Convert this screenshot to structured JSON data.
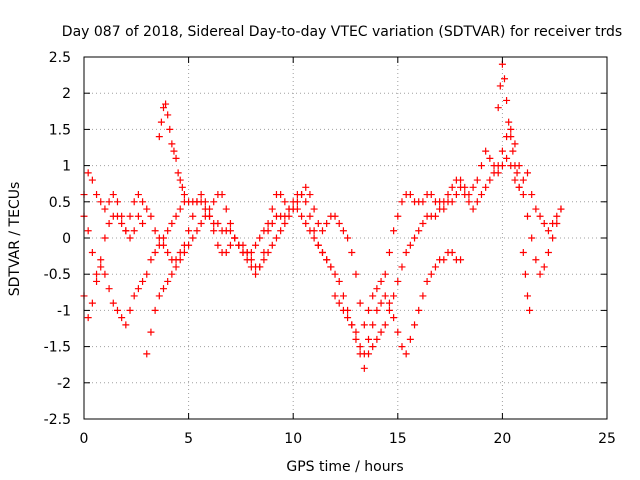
{
  "chart_data": {
    "type": "scatter",
    "title": "Day 087 of 2018, Sidereal Day-to-day VTEC variation (SDTVAR) for receiver trds",
    "xlabel": "GPS time / hours",
    "ylabel": "SDTVAR / TECUs",
    "xlim": [
      0,
      25
    ],
    "ylim": [
      -2.5,
      2.5
    ],
    "xticks": [
      "0",
      "5",
      "10",
      "15",
      "20",
      "25"
    ],
    "yticks": [
      "-2.5",
      "-2",
      "-1.5",
      "-1",
      "-0.5",
      "0",
      "0.5",
      "1",
      "1.5",
      "2",
      "2.5"
    ],
    "grid": true,
    "marker": "+",
    "color": "#ff0000",
    "series": [
      {
        "x": [
          0.0,
          0.2,
          0.4,
          0.6,
          0.8,
          1.0,
          1.2,
          1.4,
          1.6,
          1.8,
          2.0,
          2.2,
          2.4,
          2.6,
          2.8,
          3.0,
          3.2,
          3.4,
          3.6,
          3.8,
          4.0,
          4.2,
          4.4,
          4.6,
          4.8,
          5.0,
          5.2,
          5.4,
          5.6,
          5.8,
          6.0,
          6.2,
          6.4,
          6.6,
          6.8,
          7.0,
          7.2,
          7.4,
          7.6,
          7.8,
          8.0,
          8.2,
          8.4,
          8.6,
          8.8,
          9.0,
          9.2,
          9.4,
          9.6,
          9.8,
          10.0,
          10.2,
          10.4,
          10.6,
          10.8,
          11.0,
          11.2,
          11.4,
          11.6,
          11.8,
          12.0,
          12.2,
          12.4,
          12.6,
          12.8,
          13.0,
          13.2,
          13.4,
          13.6,
          13.8,
          14.0,
          14.2,
          14.4,
          14.6,
          14.8,
          15.0,
          15.2,
          15.4,
          15.6,
          15.8,
          16.0,
          16.2,
          16.4,
          16.6,
          16.8,
          17.0,
          17.2,
          17.4,
          17.6,
          17.8,
          18.0,
          18.2,
          18.4,
          18.6,
          18.8,
          19.0,
          19.2,
          19.4,
          19.6,
          19.8,
          20.0,
          20.2,
          20.4,
          20.6,
          20.8,
          21.0,
          21.2,
          21.4,
          21.6,
          21.8,
          22.0,
          22.2,
          22.4,
          22.6,
          22.8
        ],
        "y": [
          0.6,
          0.9,
          0.8,
          0.6,
          0.5,
          0.4,
          0.5,
          0.6,
          0.5,
          0.3,
          0.1,
          0.3,
          0.5,
          0.6,
          0.5,
          0.4,
          0.3,
          0.1,
          0.0,
          -0.1,
          -0.2,
          -0.3,
          -0.3,
          -0.2,
          -0.1,
          0.1,
          0.3,
          0.5,
          0.6,
          0.5,
          0.3,
          0.1,
          -0.1,
          -0.2,
          -0.2,
          -0.1,
          0.0,
          -0.1,
          -0.2,
          -0.3,
          -0.4,
          -0.5,
          -0.4,
          -0.2,
          0.1,
          0.4,
          0.6,
          0.6,
          0.5,
          0.4,
          0.4,
          0.5,
          0.6,
          0.7,
          0.6,
          0.4,
          0.2,
          0.1,
          0.2,
          0.3,
          0.3,
          0.2,
          0.1,
          0.0,
          -0.2,
          -0.5,
          -0.9,
          -1.2,
          -1.0,
          -0.8,
          -0.7,
          -0.6,
          -0.5,
          -0.2,
          0.1,
          0.3,
          0.5,
          0.6,
          0.6,
          0.5,
          0.5,
          0.5,
          0.6,
          0.6,
          0.5,
          0.5,
          0.5,
          0.6,
          0.7,
          0.8,
          0.8,
          0.7,
          0.6,
          0.7,
          0.8,
          1.0,
          1.2,
          1.1,
          1.0,
          0.9,
          1.0,
          1.1,
          1.0,
          0.8,
          0.7,
          0.8,
          0.9,
          0.6,
          0.4,
          0.3,
          0.2,
          0.1,
          0.2,
          0.3,
          0.4
        ]
      },
      {
        "x": [
          0.0,
          0.2,
          0.4,
          0.6,
          0.8,
          1.0,
          1.2,
          1.4,
          1.6,
          1.8,
          2.0,
          2.2,
          2.4,
          2.6,
          2.8,
          3.0,
          3.2,
          3.4,
          3.6,
          3.8,
          4.0,
          4.2,
          4.4,
          4.6,
          4.8,
          5.0,
          5.2,
          5.4,
          5.6,
          5.8,
          6.0,
          6.2,
          6.4,
          6.6,
          6.8,
          7.0,
          7.2,
          7.4,
          7.6,
          7.8,
          8.0,
          8.2,
          8.4,
          8.6,
          8.8,
          9.0,
          9.2,
          9.4,
          9.6,
          9.8,
          10.0,
          10.2,
          10.4,
          10.6,
          10.8,
          11.0,
          11.2,
          11.4,
          11.6,
          11.8,
          12.0,
          12.2,
          12.4,
          12.6,
          12.8,
          13.0,
          13.2,
          13.4,
          13.6,
          13.8,
          14.0,
          14.2,
          14.4,
          14.6,
          14.8,
          15.0,
          15.2,
          15.4,
          15.6,
          15.8,
          16.0,
          16.2,
          16.4,
          16.6,
          16.8,
          17.0,
          17.2,
          17.4,
          17.6,
          17.8,
          18.0,
          18.2,
          18.4,
          18.6,
          18.8,
          19.0,
          19.2,
          19.4,
          19.6,
          19.8,
          20.0,
          20.2,
          20.4,
          20.6,
          20.8,
          21.0,
          21.2,
          21.4,
          21.6,
          21.8,
          22.0,
          22.2,
          22.4,
          22.6,
          22.8
        ],
        "y": [
          -0.8,
          -1.1,
          -0.9,
          -0.6,
          -0.4,
          -0.5,
          -0.7,
          -0.9,
          -1.0,
          -1.1,
          -1.2,
          -1.0,
          -0.8,
          -0.7,
          -0.6,
          -0.5,
          -0.3,
          -0.2,
          -0.1,
          0.0,
          0.1,
          0.2,
          0.3,
          0.4,
          0.5,
          0.5,
          0.5,
          0.5,
          0.5,
          0.4,
          0.3,
          0.2,
          0.2,
          0.1,
          0.1,
          0.1,
          0.0,
          -0.1,
          -0.1,
          -0.2,
          -0.3,
          -0.4,
          -0.4,
          -0.3,
          -0.2,
          -0.1,
          0.0,
          0.1,
          0.2,
          0.3,
          0.4,
          0.4,
          0.3,
          0.2,
          0.1,
          0.0,
          -0.1,
          -0.2,
          -0.3,
          -0.4,
          -0.5,
          -0.6,
          -0.8,
          -1.0,
          -1.2,
          -1.4,
          -1.6,
          -1.8,
          -1.6,
          -1.5,
          -1.4,
          -1.3,
          -1.2,
          -1.0,
          -0.8,
          -0.6,
          -0.4,
          -0.2,
          -0.1,
          0.0,
          0.1,
          0.2,
          0.3,
          0.3,
          0.3,
          0.4,
          0.4,
          0.5,
          0.5,
          0.6,
          0.7,
          0.6,
          0.5,
          0.4,
          0.5,
          0.6,
          0.7,
          0.8,
          0.9,
          1.0,
          1.2,
          1.4,
          1.5,
          1.3,
          1.0,
          0.6,
          0.3,
          0.0,
          -0.3,
          -0.5,
          -0.4,
          -0.2,
          0.0,
          0.2,
          0.4
        ]
      },
      {
        "x": [
          0.0,
          0.2,
          0.4,
          0.6,
          0.8,
          1.0,
          1.2,
          1.4,
          1.6,
          1.8,
          2.0,
          2.2,
          2.4,
          2.6,
          2.8,
          3.0,
          3.2,
          3.4,
          3.6,
          3.8,
          4.0,
          4.2,
          4.4,
          4.6,
          4.8,
          5.0,
          5.2,
          5.4,
          5.6,
          5.8,
          6.0,
          6.2,
          6.4,
          6.6,
          6.8,
          7.0,
          7.2,
          7.4,
          7.6,
          7.8,
          8.0,
          8.2,
          8.4,
          8.6,
          8.8,
          9.0,
          9.2,
          9.4,
          9.6,
          9.8,
          10.0,
          10.2,
          10.4,
          10.6,
          10.8,
          11.0,
          11.2,
          11.4,
          11.6,
          11.8,
          12.0,
          12.2,
          12.4,
          12.6,
          12.8,
          13.0,
          13.2,
          13.4,
          13.6,
          13.8,
          14.0,
          14.2,
          14.4,
          14.6,
          14.8,
          15.0,
          15.2,
          15.4,
          15.6,
          15.8,
          16.0,
          16.2,
          16.4,
          16.6,
          16.8,
          17.0,
          17.2,
          17.4,
          17.6,
          17.8,
          18.0
        ],
        "y": [
          0.3,
          0.1,
          -0.2,
          -0.5,
          -0.3,
          0.0,
          0.2,
          0.3,
          0.3,
          0.2,
          0.1,
          0.0,
          0.1,
          0.3,
          0.2,
          -1.6,
          -1.3,
          -1.0,
          -0.8,
          -0.7,
          -0.6,
          -0.5,
          -0.4,
          -0.3,
          -0.2,
          -0.1,
          0.0,
          0.1,
          0.2,
          0.3,
          0.4,
          0.5,
          0.6,
          0.6,
          0.4,
          0.2,
          0.0,
          -0.1,
          -0.2,
          -0.2,
          -0.2,
          -0.1,
          0.0,
          0.1,
          0.2,
          0.2,
          0.3,
          0.3,
          0.3,
          0.4,
          0.5,
          0.6,
          0.6,
          0.5,
          0.3,
          0.1,
          -0.1,
          -0.2,
          -0.3,
          -0.4,
          -0.8,
          -0.9,
          -1.0,
          -1.1,
          -1.2,
          -1.3,
          -1.5,
          -1.6,
          -1.4,
          -1.2,
          -1.0,
          -0.9,
          -0.8,
          -0.9,
          -1.1,
          -1.3,
          -1.5,
          -1.6,
          -1.4,
          -1.2,
          -1.0,
          -0.8,
          -0.6,
          -0.5,
          -0.4,
          -0.3,
          -0.3,
          -0.2,
          -0.2,
          -0.3,
          -0.3
        ]
      },
      {
        "x": [
          3.6,
          3.7,
          3.8,
          3.9,
          4.0,
          4.1,
          4.2,
          4.3,
          4.4,
          4.5,
          4.6,
          4.7,
          4.8,
          19.8,
          19.9,
          20.0,
          20.1,
          20.2,
          20.3,
          20.4,
          20.5,
          20.6,
          20.7,
          20.8,
          21.0,
          21.1,
          21.2,
          21.3
        ],
        "y": [
          1.4,
          1.6,
          1.8,
          1.85,
          1.7,
          1.5,
          1.3,
          1.2,
          1.1,
          0.9,
          0.8,
          0.7,
          0.6,
          1.8,
          2.1,
          2.4,
          2.2,
          1.9,
          1.6,
          1.4,
          1.2,
          1.0,
          0.9,
          0.7,
          -0.2,
          -0.5,
          -0.8,
          -1.0
        ]
      }
    ]
  }
}
